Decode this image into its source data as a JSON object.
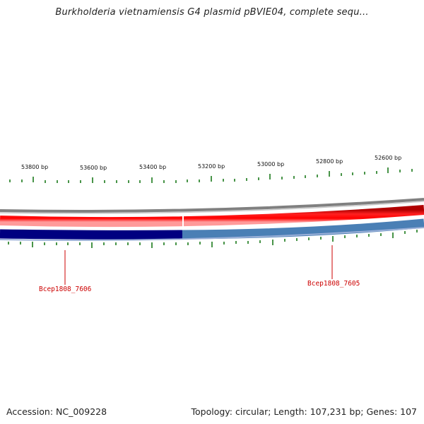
{
  "header": {
    "title": "Burkholderia vietnamiensis G4 plasmid pBVIE04, complete sequ..."
  },
  "scale": {
    "tick_labels": [
      "53800 bp",
      "53600 bp",
      "53400 bp",
      "53200 bp",
      "53000 bp",
      "52800 bp",
      "52600 bp"
    ]
  },
  "genes": [
    {
      "label": "Bcep1808_7606",
      "strand": "reverse",
      "color": "#000080"
    },
    {
      "label": "Bcep1808_7605",
      "strand": "reverse",
      "color": "#4a7fb5"
    }
  ],
  "forward_track": {
    "color": "#ff0000"
  },
  "backbone": {
    "color": "#808080"
  },
  "tick_color": "#1a7a1a",
  "footer": {
    "accession": "Accession: NC_009228",
    "summary": "Topology: circular; Length: 107,231 bp; Genes: 107"
  }
}
